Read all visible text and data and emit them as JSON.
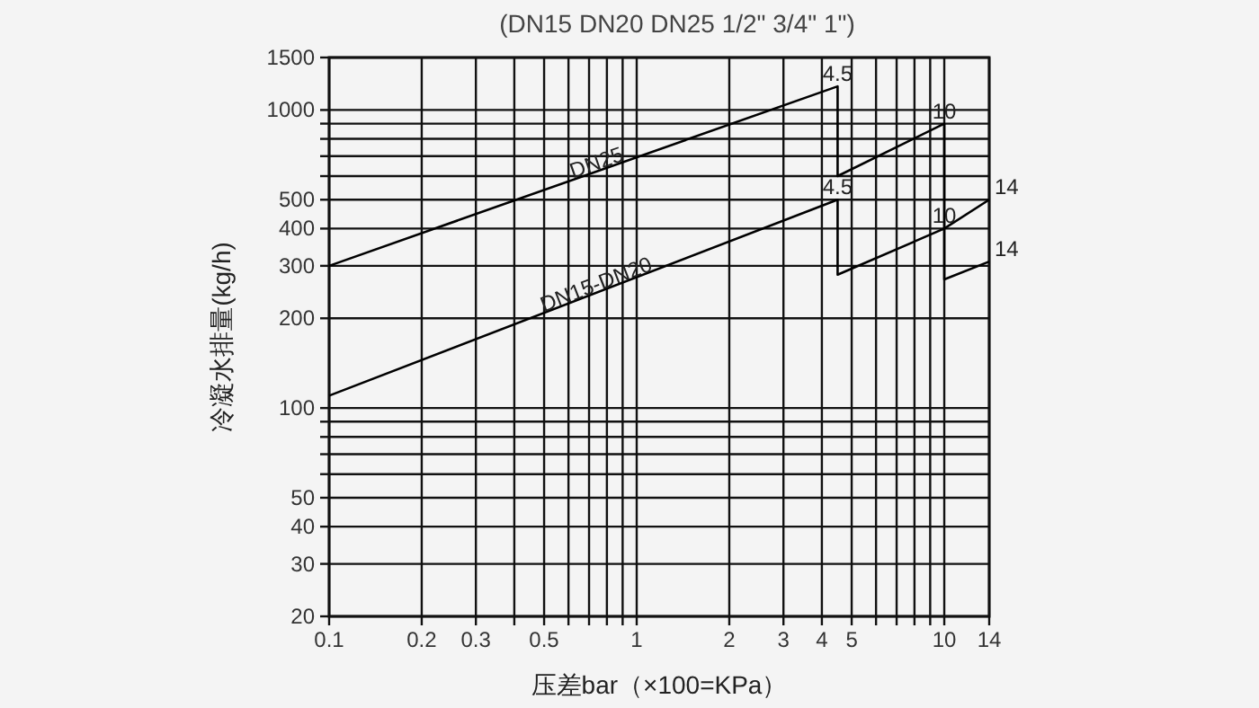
{
  "chart_data": {
    "type": "line",
    "title": "(DN15 DN20 DN25  1/2\" 3/4\" 1\")",
    "xlabel": "压差bar（×100=KPa）",
    "ylabel": "冷凝水排量(kg/h)",
    "log": "xy",
    "grid": true,
    "marker": "none",
    "line_style": "solid",
    "xlim": [
      0.1,
      14
    ],
    "ylim": [
      20,
      1500
    ],
    "xticks": [
      0.1,
      0.2,
      0.3,
      {
        "value": 0.4,
        "label": null
      },
      0.5,
      {
        "value": 0.6,
        "label": null
      },
      {
        "value": 0.7,
        "label": null
      },
      {
        "value": 0.8,
        "label": null
      },
      {
        "value": 0.9,
        "label": null
      },
      1,
      2,
      3,
      4,
      5,
      {
        "value": 6,
        "label": null
      },
      {
        "value": 7,
        "label": null
      },
      {
        "value": 8,
        "label": null
      },
      {
        "value": 9,
        "label": null
      },
      10,
      14
    ],
    "yticks": [
      20,
      30,
      40,
      50,
      {
        "value": 60,
        "label": null
      },
      {
        "value": 70,
        "label": null
      },
      {
        "value": 80,
        "label": null
      },
      {
        "value": 90,
        "label": null
      },
      100,
      200,
      300,
      400,
      500,
      {
        "value": 600,
        "label": null
      },
      {
        "value": 700,
        "label": null
      },
      {
        "value": 800,
        "label": null
      },
      {
        "value": 900,
        "label": null
      },
      1000,
      1500
    ],
    "series": [
      {
        "name": "DN25",
        "color": "#000000",
        "x": [
          0.1,
          4.5,
          4.5,
          10,
          10,
          14
        ],
        "values": [
          300,
          1200,
          600,
          900,
          400,
          500
        ]
      },
      {
        "name": "DN15-DN20",
        "color": "#000000",
        "x": [
          0.1,
          4.5,
          4.5,
          10,
          10,
          14
        ],
        "values": [
          110,
          500,
          280,
          400,
          270,
          310
        ]
      }
    ],
    "annotations": [
      {
        "text": "4.5",
        "x": 4.5,
        "y": 1200
      },
      {
        "text": "10",
        "x": 10,
        "y": 900
      },
      {
        "text": "14",
        "x": 14,
        "y": 500
      },
      {
        "text": "4.5",
        "x": 4.5,
        "y": 500
      },
      {
        "text": "10",
        "x": 10,
        "y": 400
      },
      {
        "text": "14",
        "x": 14,
        "y": 310
      }
    ]
  }
}
